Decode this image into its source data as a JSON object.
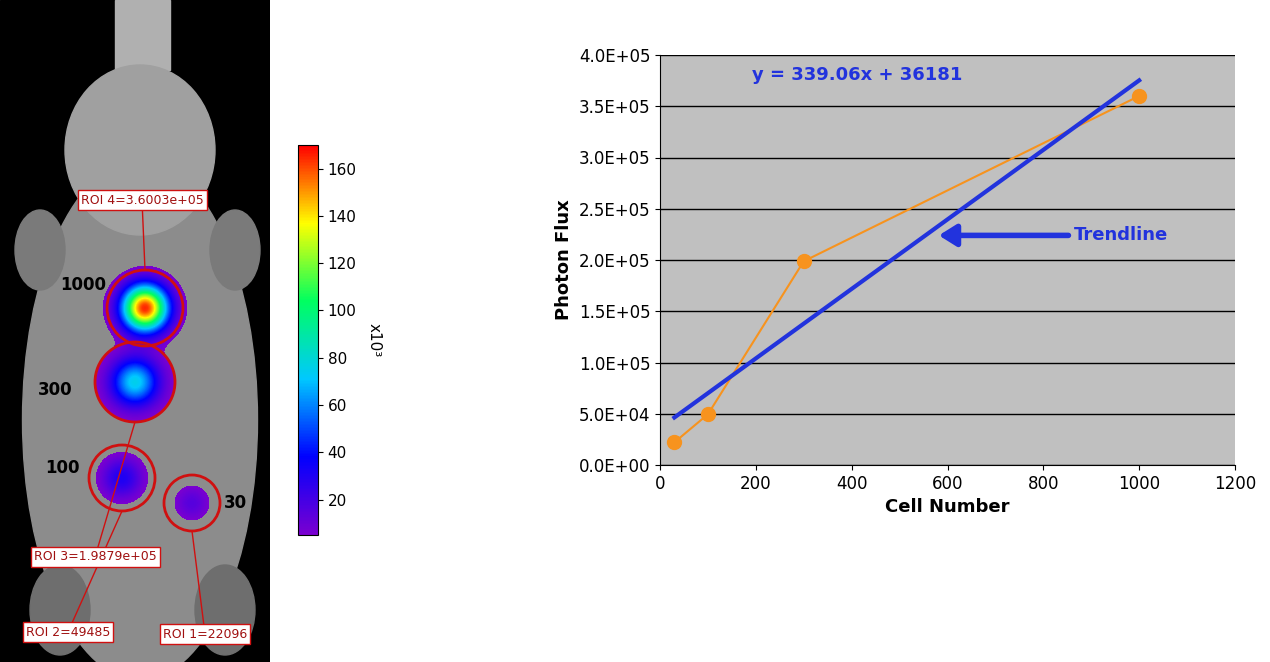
{
  "chart_data": [
    {
      "type": "image",
      "colorbar": {
        "range": [
          5,
          170
        ],
        "ticks": [
          20,
          40,
          60,
          80,
          100,
          120,
          140,
          160
        ],
        "label": "x10³"
      },
      "rois": [
        {
          "cells": 1000,
          "label": "ROI 4=3.6003e+05",
          "peak_intensity": 165
        },
        {
          "cells": 300,
          "label": "ROI 3=1.9879e+05",
          "peak_intensity": 75
        },
        {
          "cells": 100,
          "label": "ROI 2=49485",
          "peak_intensity": 30
        },
        {
          "cells": 30,
          "label": "ROI 1=22096",
          "peak_intensity": 15
        }
      ]
    },
    {
      "type": "line",
      "x": [
        30,
        100,
        300,
        1000
      ],
      "values": [
        22096,
        49485,
        198790,
        360030
      ],
      "color": "#f7931e",
      "marker": "o",
      "line_style": "solid",
      "trendline": {
        "slope": 339.06,
        "intercept": 36181,
        "x": [
          30,
          1000
        ],
        "label": "y = 339.06x + 36181",
        "annotation": "Trendline",
        "color": "#2233dd"
      },
      "x_label": "Cell Number",
      "y_label": "Photon Flux",
      "xlim": [
        0,
        1200
      ],
      "xticks": [
        0,
        200,
        400,
        600,
        800,
        1000,
        1200
      ],
      "ylim": [
        0,
        400000
      ],
      "yticks": [
        {
          "value": 0,
          "label": "0.0E+00"
        },
        {
          "value": 50000,
          "label": "5.0E+04"
        },
        {
          "value": 100000,
          "label": "1.0E+05"
        },
        {
          "value": 150000,
          "label": "1.5E+05"
        },
        {
          "value": 200000,
          "label": "2.0E+05"
        },
        {
          "value": 250000,
          "label": "2.5E+05"
        },
        {
          "value": 300000,
          "label": "3.0E+05"
        },
        {
          "value": 350000,
          "label": "3.5E+05"
        },
        {
          "value": 400000,
          "label": "4.0E+05"
        }
      ],
      "grid": true
    }
  ]
}
